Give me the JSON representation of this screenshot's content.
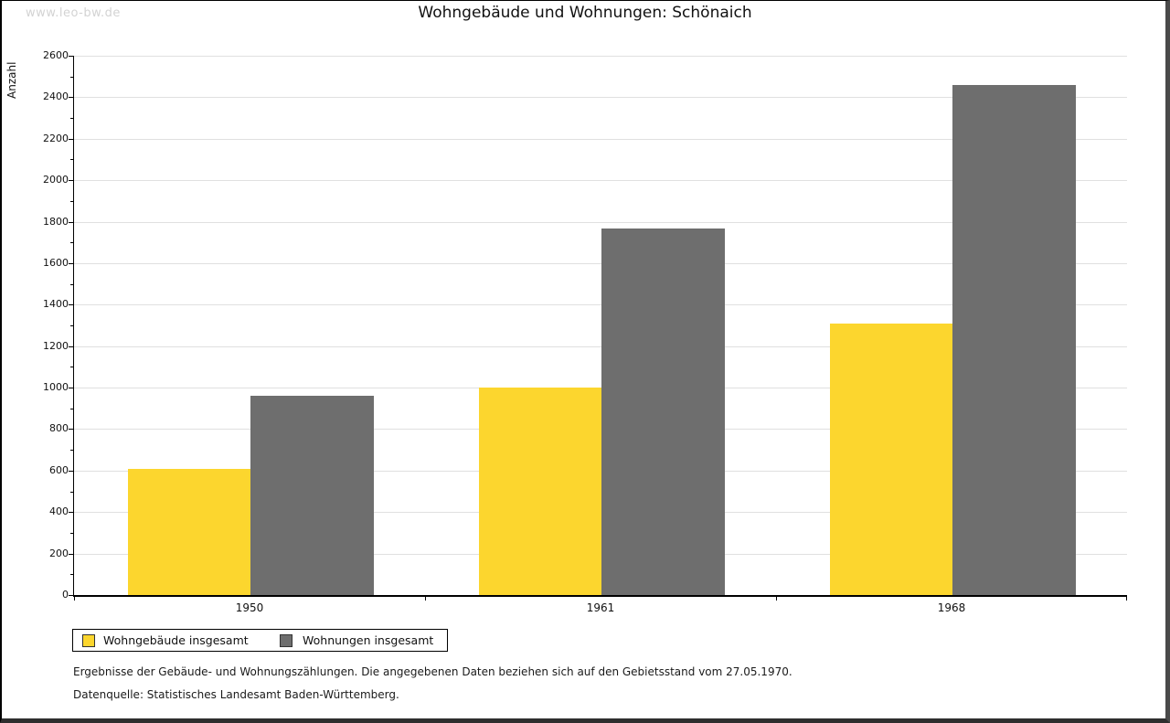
{
  "watermark": "www.leo-bw.de",
  "title": "Wohngebäude und Wohnungen: Schönaich",
  "legend": {
    "entries": [
      {
        "label": "Wohngebäude insgesamt"
      },
      {
        "label": "Wohnungen insgesamt"
      }
    ]
  },
  "footer": {
    "line1": "Ergebnisse der Gebäude- und Wohnungszählungen. Die angegebenen Daten beziehen sich auf den Gebietsstand vom 27.05.1970.",
    "line2": "Datenquelle: Statistisches Landesamt Baden-Württemberg."
  },
  "chart_data": {
    "type": "bar",
    "title": "Wohngebäude und Wohnungen: Schönaich",
    "xlabel": "",
    "ylabel": "Anzahl",
    "categories": [
      "1950",
      "1961",
      "1968"
    ],
    "series": [
      {
        "name": "Wohngebäude insgesamt",
        "color": "#FCD62E",
        "values": [
          610,
          1000,
          1310
        ]
      },
      {
        "name": "Wohnungen insgesamt",
        "color": "#6E6E6E",
        "values": [
          960,
          1765,
          2460
        ]
      }
    ],
    "ylim": [
      0,
      2600
    ],
    "ytick_step": 200,
    "yminor_step": 100,
    "grid": "horizontal-major",
    "gridline_color": "#e0e0e0",
    "legend_position": "bottom-left"
  }
}
